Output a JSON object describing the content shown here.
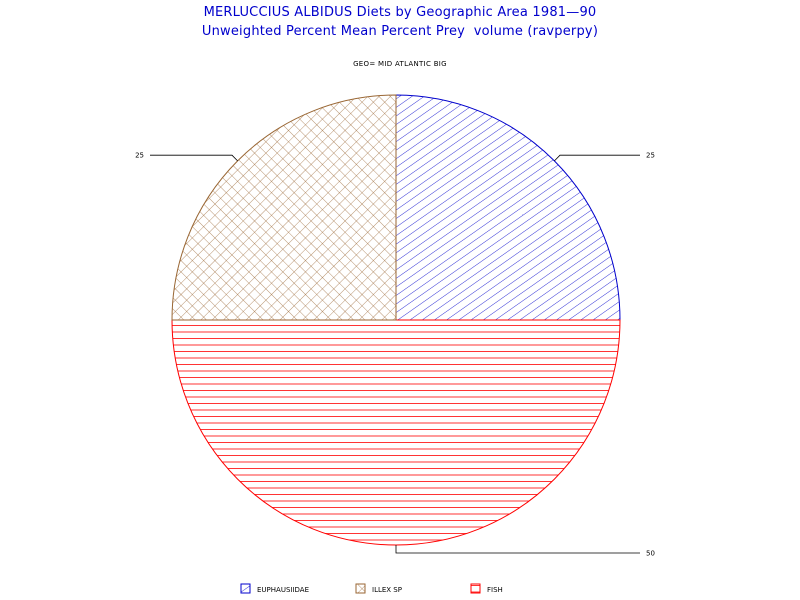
{
  "chart_data": {
    "type": "pie",
    "title": "MERLUCCIUS ALBIDUS Diets by Geographic Area 1981—90",
    "subtitle": "Unweighted Percent Mean Percent Prey  volume (ravperpy)",
    "group_label": "GEO= MID ATLANTIC BIG",
    "slices": [
      {
        "name": "EUPHAUSIIDAE",
        "value": 25,
        "label": "25",
        "color": "#0000cc",
        "pattern": "diagonal-hatch"
      },
      {
        "name": "FISH",
        "value": 50,
        "label": "50",
        "color": "#ff0000",
        "pattern": "horizontal-lines"
      },
      {
        "name": "ILLEX SP",
        "value": 25,
        "label": "25",
        "color": "#996633",
        "pattern": "cross-hatch"
      }
    ],
    "legend": {
      "placement": "bottom",
      "order": [
        "EUPHAUSIIDAE",
        "ILLEX SP",
        "FISH"
      ]
    }
  }
}
